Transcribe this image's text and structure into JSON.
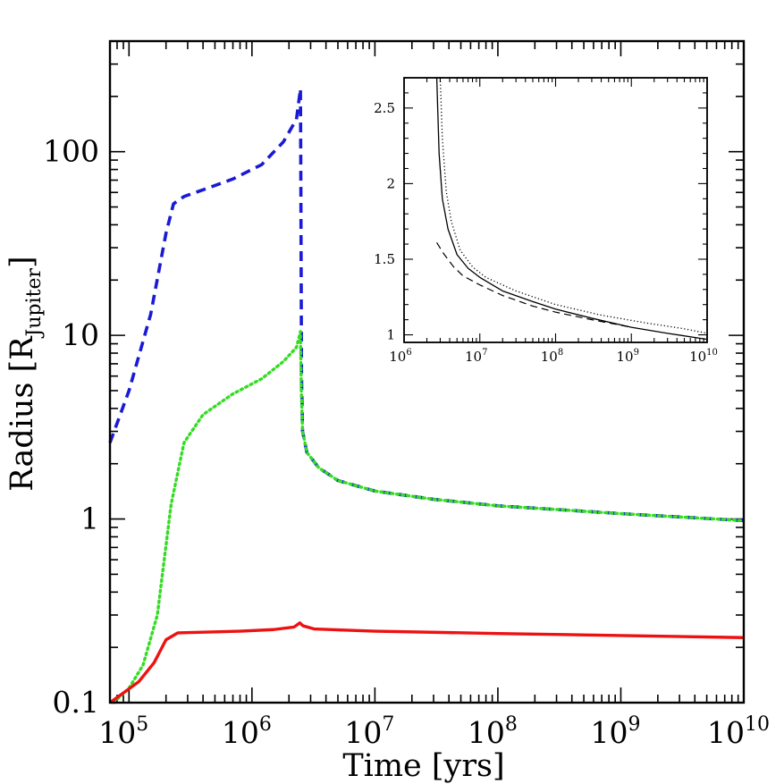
{
  "chart_data": [
    {
      "type": "line",
      "xlabel": "Time [yrs]",
      "ylabel": "Radius [R",
      "ylabel_subscript": "Jupiter",
      "ylabel_close": "]",
      "x_scale": "log",
      "y_scale": "log",
      "xlim": [
        70000,
        10000000000
      ],
      "ylim": [
        0.1,
        400
      ],
      "grid": false,
      "x_ticks": [
        {
          "value": 100000,
          "base": "10",
          "exp": "5"
        },
        {
          "value": 1000000,
          "base": "10",
          "exp": "6"
        },
        {
          "value": 10000000,
          "base": "10",
          "exp": "7"
        },
        {
          "value": 100000000,
          "base": "10",
          "exp": "8"
        },
        {
          "value": 1000000000,
          "base": "10",
          "exp": "9"
        },
        {
          "value": 10000000000,
          "base": "10",
          "exp": "10"
        }
      ],
      "y_ticks": [
        {
          "value": 0.1,
          "label": "0.1"
        },
        {
          "value": 1,
          "label": "1"
        },
        {
          "value": 10,
          "label": "10"
        },
        {
          "value": 100,
          "label": "100"
        }
      ],
      "series": [
        {
          "style": "dashed",
          "color": "#1a1ad6",
          "points": [
            [
              70000,
              2.6
            ],
            [
              100000,
              5.0
            ],
            [
              150000,
              13.0
            ],
            [
              200000,
              36.0
            ],
            [
              230000,
              52.0
            ],
            [
              280000,
              57.0
            ],
            [
              400000,
              62.0
            ],
            [
              700000,
              71.0
            ],
            [
              1200000,
              85.0
            ],
            [
              1800000,
              113.0
            ],
            [
              2300000,
              150.0
            ],
            [
              2480000,
              220.0
            ],
            [
              2500000,
              60.0
            ],
            [
              2530000,
              6.0
            ],
            [
              2580000,
              3.0
            ],
            [
              2800000,
              2.3
            ],
            [
              3500000,
              1.9
            ],
            [
              5000000,
              1.62
            ],
            [
              10000000,
              1.42
            ],
            [
              30000000,
              1.28
            ],
            [
              100000000,
              1.18
            ],
            [
              1000000000,
              1.07
            ],
            [
              10000000000,
              0.98
            ]
          ]
        },
        {
          "style": "dotted",
          "color": "#33dd22",
          "points": [
            [
              75000,
              0.1
            ],
            [
              100000,
              0.12
            ],
            [
              130000,
              0.16
            ],
            [
              170000,
              0.3
            ],
            [
              220000,
              1.2
            ],
            [
              280000,
              2.6
            ],
            [
              400000,
              3.7
            ],
            [
              700000,
              4.8
            ],
            [
              1200000,
              5.8
            ],
            [
              1800000,
              7.2
            ],
            [
              2300000,
              8.6
            ],
            [
              2480000,
              10.5
            ],
            [
              2520000,
              5.0
            ],
            [
              2580000,
              3.0
            ],
            [
              2800000,
              2.3
            ],
            [
              3500000,
              1.9
            ],
            [
              5000000,
              1.62
            ],
            [
              10000000,
              1.42
            ],
            [
              30000000,
              1.28
            ],
            [
              100000000,
              1.18
            ],
            [
              1000000000,
              1.07
            ],
            [
              10000000000,
              0.98
            ]
          ]
        },
        {
          "style": "solid",
          "color": "#ee1111",
          "points": [
            [
              70000,
              0.1
            ],
            [
              90000,
              0.113
            ],
            [
              120000,
              0.13
            ],
            [
              160000,
              0.165
            ],
            [
              200000,
              0.22
            ],
            [
              250000,
              0.24
            ],
            [
              400000,
              0.242
            ],
            [
              800000,
              0.245
            ],
            [
              1500000,
              0.25
            ],
            [
              2200000,
              0.258
            ],
            [
              2450000,
              0.272
            ],
            [
              2600000,
              0.262
            ],
            [
              3200000,
              0.252
            ],
            [
              5000000,
              0.249
            ],
            [
              10000000,
              0.245
            ],
            [
              100000000,
              0.238
            ],
            [
              1000000000,
              0.232
            ],
            [
              10000000000,
              0.226
            ]
          ]
        }
      ]
    },
    {
      "type": "line",
      "x_scale": "log",
      "y_scale": "linear",
      "xlim": [
        1000000,
        10000000000
      ],
      "ylim": [
        0.95,
        2.7
      ],
      "grid": false,
      "x_ticks": [
        {
          "value": 1000000,
          "base": "10",
          "exp": "6"
        },
        {
          "value": 10000000,
          "base": "10",
          "exp": "7"
        },
        {
          "value": 100000000,
          "base": "10",
          "exp": "8"
        },
        {
          "value": 1000000000,
          "base": "10",
          "exp": "9"
        },
        {
          "value": 10000000000,
          "base": "10",
          "exp": "10"
        }
      ],
      "y_ticks": [
        {
          "value": 1,
          "label": "1"
        },
        {
          "value": 1.5,
          "label": "1.5"
        },
        {
          "value": 2,
          "label": "2"
        },
        {
          "value": 2.5,
          "label": "2.5"
        }
      ],
      "series": [
        {
          "style": "solid",
          "color": "#000000",
          "points": [
            [
              2700000,
              2.7
            ],
            [
              2900000,
              2.2
            ],
            [
              3200000,
              1.9
            ],
            [
              3800000,
              1.7
            ],
            [
              5000000,
              1.53
            ],
            [
              7000000,
              1.44
            ],
            [
              10000000,
              1.38
            ],
            [
              20000000,
              1.29
            ],
            [
              50000000,
              1.22
            ],
            [
              100000000,
              1.17
            ],
            [
              300000000,
              1.11
            ],
            [
              1000000000,
              1.05
            ],
            [
              3000000000,
              1.01
            ],
            [
              10000000000,
              0.97
            ]
          ]
        },
        {
          "style": "dotted",
          "color": "#000000",
          "points": [
            [
              3000000,
              2.7
            ],
            [
              3200000,
              2.3
            ],
            [
              3600000,
              1.95
            ],
            [
              4200000,
              1.75
            ],
            [
              5500000,
              1.56
            ],
            [
              8000000,
              1.45
            ],
            [
              12000000,
              1.38
            ],
            [
              30000000,
              1.29
            ],
            [
              100000000,
              1.2
            ],
            [
              400000000,
              1.13
            ],
            [
              1500000000,
              1.08
            ],
            [
              5000000000,
              1.04
            ],
            [
              10000000000,
              1.01
            ]
          ]
        },
        {
          "style": "dashed",
          "color": "#000000",
          "points": [
            [
              2700000,
              1.61
            ],
            [
              3300000,
              1.54
            ],
            [
              4500000,
              1.45
            ],
            [
              6000000,
              1.39
            ],
            [
              10000000,
              1.33
            ],
            [
              20000000,
              1.26
            ],
            [
              50000000,
              1.19
            ],
            [
              100000000,
              1.15
            ],
            [
              300000000,
              1.1
            ],
            [
              1000000000,
              1.05
            ]
          ]
        }
      ]
    }
  ]
}
